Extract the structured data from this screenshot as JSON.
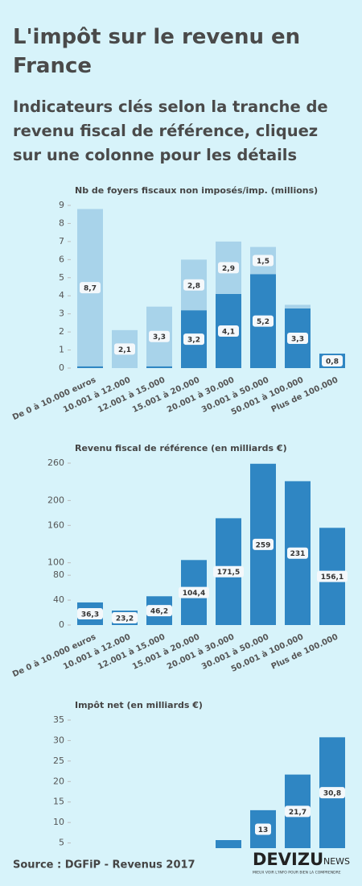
{
  "header": {
    "title": "L'impôt sur le revenu en France",
    "subtitle": "Indicateurs clés selon la tranche de revenu fiscal de référence, cliquez sur une colonne pour les détails"
  },
  "chart_data": [
    {
      "type": "stacked-bar",
      "title": "Nb de foyers fiscaux non imposés/imp. (millions)",
      "categories": [
        "De 0 à 10.000 euros",
        "10.001 à 12.000",
        "12.001 à 15.000",
        "15.001 à 20.000",
        "20.001 à 30.000",
        "30.001 à 50.000",
        "50.001 à 100.000",
        "Plus de 100.000"
      ],
      "series": [
        {
          "color": "#2f86c3",
          "values": [
            0.1,
            0,
            0.1,
            3.2,
            4.1,
            5.2,
            3.3,
            0.8
          ],
          "value_labels": [
            null,
            null,
            null,
            "3,2",
            "4,1",
            "5,2",
            "3,3",
            "0,8"
          ]
        },
        {
          "color": "#a8d3ea",
          "values": [
            8.7,
            2.1,
            3.3,
            2.8,
            2.9,
            1.5,
            0.2,
            0
          ],
          "value_labels": [
            "8,7",
            "2,1",
            "3,3",
            "2,8",
            "2,9",
            "1,5",
            null,
            null
          ]
        }
      ],
      "ylim": [
        0,
        9
      ],
      "yticks": [
        0,
        1,
        2,
        3,
        4,
        5,
        6,
        7,
        8,
        9
      ]
    },
    {
      "type": "bar",
      "title": "Revenu fiscal de référence (en milliards €)",
      "categories": [
        "De 0 à 10.000 euros",
        "10.001 à 12.000",
        "12.001 à 15.000",
        "15.001 à 20.000",
        "20.001 à 30.000",
        "30.001 à 50.000",
        "50.001 à 100.000",
        "Plus de 100.000"
      ],
      "color": "#2f86c3",
      "values": [
        36.3,
        23.2,
        46.2,
        104.4,
        171.5,
        259,
        231,
        156.1
      ],
      "value_labels": [
        "36,3",
        "23,2",
        "46,2",
        "104,4",
        "171,5",
        "259",
        "231",
        "156,1"
      ],
      "ylim": [
        0,
        260
      ],
      "yticks": [
        0,
        40,
        80,
        100,
        160,
        200,
        260
      ]
    },
    {
      "type": "bar",
      "title": "Impôt net (en milliards €)",
      "color": "#2f86c3",
      "values": [
        null,
        null,
        null,
        null,
        5.7,
        13,
        21.7,
        30.8
      ],
      "value_labels": [
        null,
        null,
        null,
        null,
        null,
        "13",
        "21,7",
        "30,8"
      ],
      "ylim": [
        0,
        35
      ],
      "yticks": [
        5,
        10,
        15,
        20,
        25,
        30,
        35
      ]
    }
  ],
  "footer": {
    "source": "Source : DGFiP - Revenus 2017",
    "logo": "DEVIZU",
    "logo_suffix": "NEWS",
    "tagline": "MIEUX VOIR L'INFO POUR BIEN LA COMPRENDRE"
  }
}
